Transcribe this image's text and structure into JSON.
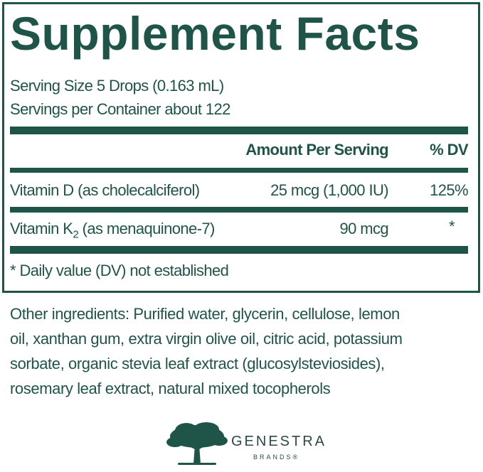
{
  "title": "Supplement Facts",
  "serving_size": "Serving Size 5 Drops (0.163 mL)",
  "servings_per_container": "Servings per Container about 122",
  "table": {
    "header_amount": "Amount Per Serving",
    "header_dv": "% DV",
    "rows": [
      {
        "name": "Vitamin D (as cholecalciferol)",
        "amount": "25 mcg (1,000 IU)",
        "dv": "125%"
      },
      {
        "name_pre": "Vitamin K",
        "name_sub": "2",
        "name_post": " (as menaquinone-7)",
        "amount": "90 mcg",
        "dv": "*"
      }
    ],
    "footnote": "* Daily value (DV) not established"
  },
  "other_ingredients": [
    "Other ingredients: Purified water, glycerin, cellulose, lemon",
    "oil, xanthan gum, extra virgin olive oil, citric acid, potassium",
    "sorbate, organic stevia leaf extract (glucosylsteviosides),",
    "rosemary leaf extract, natural mixed tocopherols"
  ],
  "brand": {
    "name": "GENESTRA",
    "sub": "BRANDS®",
    "icon": "oak-tree-logo"
  },
  "colors": {
    "primary": "#1f5449"
  }
}
